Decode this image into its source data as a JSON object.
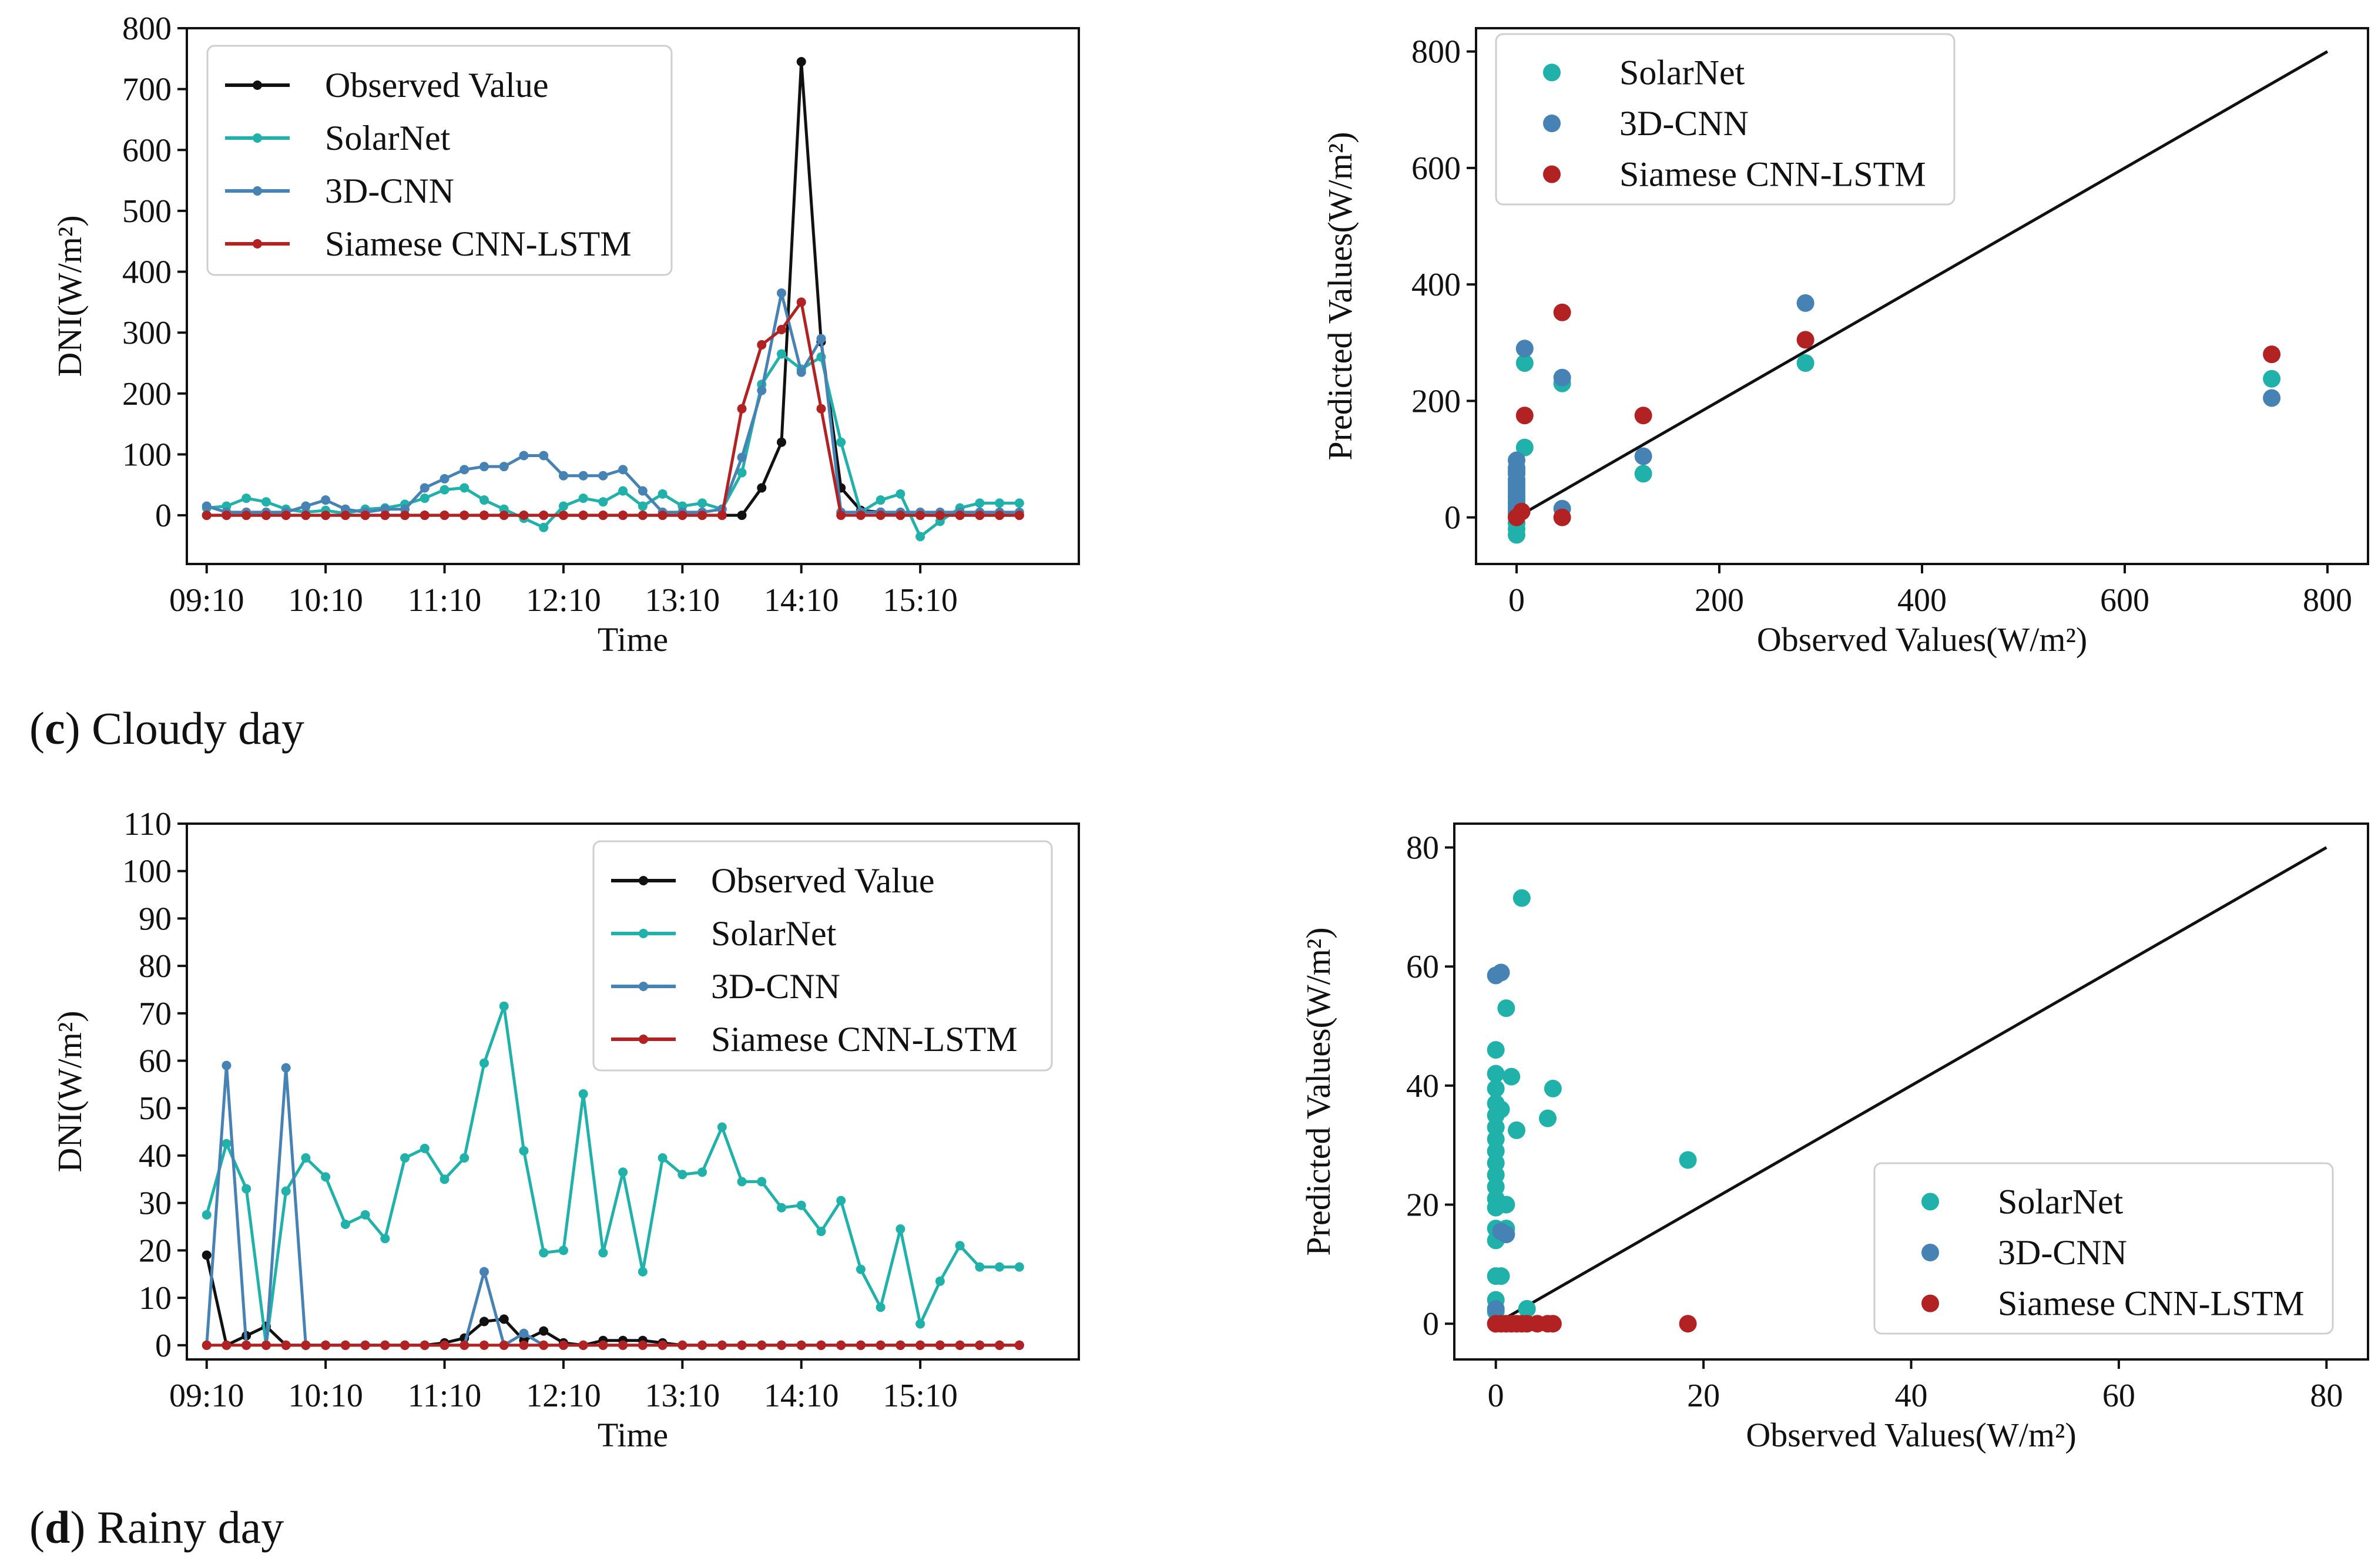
{
  "captions": {
    "c": {
      "letter": "c",
      "text": "Cloudy day"
    },
    "d": {
      "letter": "d",
      "text": "Rainy day"
    }
  },
  "colors": {
    "observed": "#111111",
    "solarnet": "#20b2aa",
    "cnn3d": "#4682b4",
    "siamese": "#b22222"
  },
  "chart_data": [
    {
      "id": "c_ts",
      "type": "line",
      "xlabel": "Time",
      "ylabel": "DNI(W/m²)",
      "xlim": [
        -1,
        44
      ],
      "ylim": [
        -80,
        800
      ],
      "yticks": [
        0,
        100,
        200,
        300,
        400,
        500,
        600,
        700,
        800
      ],
      "xticks": [
        0,
        6,
        12,
        18,
        24,
        30,
        36
      ],
      "xticklabels": [
        "09:10",
        "10:10",
        "11:10",
        "12:10",
        "13:10",
        "14:10",
        "15:10"
      ],
      "legend_position": "upper-left",
      "series": [
        {
          "name": "Observed Value",
          "key": "observed",
          "values": [
            0,
            0,
            0,
            0,
            0,
            0,
            0,
            0,
            0,
            0,
            0,
            0,
            0,
            0,
            0,
            0,
            0,
            0,
            0,
            0,
            0,
            0,
            0,
            0,
            0,
            0,
            0,
            0,
            45,
            120,
            745,
            285,
            45,
            8,
            5,
            0,
            0,
            0,
            0,
            0,
            0,
            0
          ]
        },
        {
          "name": "SolarNet",
          "key": "solarnet",
          "values": [
            12,
            15,
            28,
            22,
            10,
            5,
            8,
            3,
            10,
            12,
            18,
            28,
            42,
            45,
            25,
            10,
            -5,
            -20,
            15,
            28,
            22,
            40,
            15,
            35,
            15,
            20,
            10,
            70,
            215,
            265,
            240,
            260,
            120,
            5,
            25,
            35,
            -35,
            -10,
            12,
            20,
            20,
            20
          ]
        },
        {
          "name": "3D-CNN",
          "key": "cnn3d",
          "values": [
            15,
            5,
            5,
            5,
            5,
            15,
            25,
            10,
            5,
            10,
            10,
            45,
            60,
            75,
            80,
            80,
            98,
            98,
            65,
            65,
            65,
            75,
            40,
            5,
            5,
            5,
            10,
            95,
            205,
            365,
            235,
            290,
            5,
            5,
            5,
            5,
            5,
            5,
            5,
            5,
            5,
            5
          ]
        },
        {
          "name": "Siamese CNN-LSTM",
          "key": "siamese",
          "values": [
            0,
            0,
            0,
            0,
            0,
            0,
            0,
            0,
            0,
            0,
            0,
            0,
            0,
            0,
            0,
            0,
            0,
            0,
            0,
            0,
            0,
            0,
            0,
            0,
            0,
            0,
            0,
            175,
            280,
            305,
            350,
            175,
            0,
            0,
            0,
            0,
            0,
            0,
            0,
            0,
            0,
            0
          ]
        }
      ]
    },
    {
      "id": "c_scatter",
      "type": "scatter",
      "xlabel": "Observed Values(W/m²)",
      "ylabel": "Predicted Values(W/m²)",
      "xlim": [
        -40,
        840
      ],
      "ylim": [
        -80,
        840
      ],
      "xticks": [
        0,
        200,
        400,
        600,
        800
      ],
      "yticks": [
        0,
        200,
        400,
        600,
        800
      ],
      "reference_line": [
        [
          0,
          0
        ],
        [
          800,
          800
        ]
      ],
      "legend_position": "upper-left",
      "series": [
        {
          "name": "SolarNet",
          "key": "solarnet",
          "points": [
            [
              0,
              -30
            ],
            [
              0,
              -20
            ],
            [
              0,
              -10
            ],
            [
              0,
              0
            ],
            [
              0,
              10
            ],
            [
              0,
              20
            ],
            [
              0,
              30
            ],
            [
              0,
              40
            ],
            [
              0,
              50
            ],
            [
              0,
              60
            ],
            [
              0,
              80
            ],
            [
              8,
              120
            ],
            [
              8,
              265
            ],
            [
              45,
              230
            ],
            [
              125,
              75
            ],
            [
              285,
              265
            ],
            [
              745,
              238
            ]
          ]
        },
        {
          "name": "3D-CNN",
          "key": "cnn3d",
          "points": [
            [
              0,
              5
            ],
            [
              0,
              15
            ],
            [
              0,
              25
            ],
            [
              0,
              35
            ],
            [
              0,
              45
            ],
            [
              0,
              55
            ],
            [
              0,
              65
            ],
            [
              0,
              75
            ],
            [
              0,
              85
            ],
            [
              0,
              98
            ],
            [
              8,
              290
            ],
            [
              45,
              240
            ],
            [
              45,
              15
            ],
            [
              125,
              105
            ],
            [
              285,
              368
            ],
            [
              745,
              205
            ]
          ]
        },
        {
          "name": "Siamese CNN-LSTM",
          "key": "siamese",
          "points": [
            [
              0,
              0
            ],
            [
              5,
              10
            ],
            [
              8,
              175
            ],
            [
              45,
              352
            ],
            [
              45,
              0
            ],
            [
              125,
              175
            ],
            [
              285,
              305
            ],
            [
              745,
              280
            ]
          ]
        }
      ]
    },
    {
      "id": "d_ts",
      "type": "line",
      "xlabel": "Time",
      "ylabel": "DNI(W/m²)",
      "xlim": [
        -1,
        44
      ],
      "ylim": [
        -3,
        110
      ],
      "yticks": [
        0,
        10,
        20,
        30,
        40,
        50,
        60,
        70,
        80,
        90,
        100,
        110
      ],
      "xticks": [
        0,
        6,
        12,
        18,
        24,
        30,
        36
      ],
      "xticklabels": [
        "09:10",
        "10:10",
        "11:10",
        "12:10",
        "13:10",
        "14:10",
        "15:10"
      ],
      "legend_position": "upper-right",
      "series": [
        {
          "name": "Observed Value",
          "key": "observed",
          "values": [
            19,
            0,
            2,
            4,
            0,
            0,
            0,
            0,
            0,
            0,
            0,
            0,
            0.5,
            1.5,
            5,
            5.5,
            1,
            3,
            0.5,
            0,
            1,
            1,
            1,
            0.5,
            0,
            0,
            0,
            0,
            0,
            0,
            0,
            0,
            0,
            0,
            0,
            0,
            0,
            0,
            0,
            0,
            0,
            0
          ]
        },
        {
          "name": "SolarNet",
          "key": "solarnet",
          "values": [
            27.5,
            42.5,
            33,
            0,
            32.5,
            39.5,
            35.5,
            25.5,
            27.5,
            22.5,
            39.5,
            41.5,
            35,
            39.5,
            59.5,
            71.5,
            41,
            19.5,
            20,
            53,
            19.5,
            36.5,
            15.5,
            39.5,
            36,
            36.5,
            46,
            34.5,
            34.5,
            29,
            29.5,
            24,
            30.5,
            16,
            8,
            24.5,
            4.5,
            13.5,
            21,
            16.5,
            16.5,
            16.5
          ]
        },
        {
          "name": "3D-CNN",
          "key": "cnn3d",
          "values": [
            0,
            59,
            0,
            0,
            58.5,
            0,
            0,
            0,
            0,
            0,
            0,
            0,
            0,
            0,
            15.5,
            0,
            2.5,
            0,
            0,
            0,
            0,
            0,
            0,
            0,
            0,
            0,
            0,
            0,
            0,
            0,
            0,
            0,
            0,
            0,
            0,
            0,
            0,
            0,
            0,
            0,
            0,
            0
          ]
        },
        {
          "name": "Siamese CNN-LSTM",
          "key": "siamese",
          "values": [
            0,
            0,
            0,
            0,
            0,
            0,
            0,
            0,
            0,
            0,
            0,
            0,
            0,
            0,
            0,
            0,
            0,
            0,
            0,
            0,
            0,
            0,
            0,
            0,
            0,
            0,
            0,
            0,
            0,
            0,
            0,
            0,
            0,
            0,
            0,
            0,
            0,
            0,
            0,
            0,
            0,
            0
          ]
        }
      ]
    },
    {
      "id": "d_scatter",
      "type": "scatter",
      "xlabel": "Observed Values(W/m²)",
      "ylabel": "Predicted Values(W/m²)",
      "xlim": [
        -4,
        84
      ],
      "ylim": [
        -6,
        84
      ],
      "xticks": [
        0,
        20,
        40,
        60,
        80
      ],
      "yticks": [
        0,
        20,
        40,
        60,
        80
      ],
      "reference_line": [
        [
          0,
          0
        ],
        [
          80,
          80
        ]
      ],
      "legend_position": "lower-right",
      "series": [
        {
          "name": "SolarNet",
          "key": "solarnet",
          "points": [
            [
              0,
              2
            ],
            [
              0,
              4
            ],
            [
              0,
              8
            ],
            [
              0,
              14
            ],
            [
              0,
              16
            ],
            [
              0,
              19.5
            ],
            [
              0,
              21
            ],
            [
              0,
              23
            ],
            [
              0,
              25
            ],
            [
              0,
              27
            ],
            [
              0,
              29
            ],
            [
              0,
              31
            ],
            [
              0,
              33
            ],
            [
              0,
              35
            ],
            [
              0,
              37
            ],
            [
              0,
              39.5
            ],
            [
              0,
              42
            ],
            [
              0,
              46
            ],
            [
              0.5,
              36
            ],
            [
              1,
              53
            ],
            [
              1,
              20
            ],
            [
              1.5,
              41.5
            ],
            [
              2.5,
              71.5
            ],
            [
              2,
              32.5
            ],
            [
              5,
              34.5
            ],
            [
              5.5,
              39.5
            ],
            [
              18.5,
              27.5
            ],
            [
              3,
              2.5
            ],
            [
              0.5,
              8
            ],
            [
              1,
              16
            ]
          ]
        },
        {
          "name": "3D-CNN",
          "key": "cnn3d",
          "points": [
            [
              0,
              0
            ],
            [
              0,
              2.5
            ],
            [
              0,
              58.5
            ],
            [
              0.5,
              59
            ],
            [
              0.5,
              15.5
            ],
            [
              1,
              15
            ]
          ]
        },
        {
          "name": "Siamese CNN-LSTM",
          "key": "siamese",
          "points": [
            [
              0,
              0
            ],
            [
              0.5,
              0
            ],
            [
              1,
              0
            ],
            [
              1.5,
              0
            ],
            [
              2,
              0
            ],
            [
              2.5,
              0
            ],
            [
              3,
              0
            ],
            [
              4,
              0
            ],
            [
              5,
              0
            ],
            [
              5.5,
              0
            ],
            [
              18.5,
              0
            ]
          ]
        }
      ]
    }
  ]
}
